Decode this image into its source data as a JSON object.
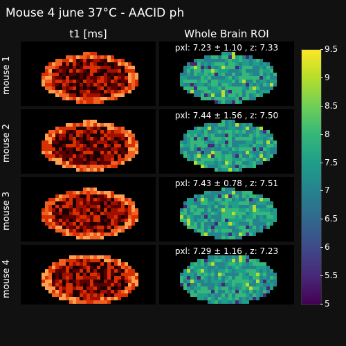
{
  "title": "Mouse 4 june 37°C - AACID ph",
  "columns": {
    "left": "t1 [ms]",
    "right": "Whole Brain ROI"
  },
  "rows": [
    {
      "label": "mouse 1",
      "stat": "pxl: 7.23 ± 1.10 , z: 7.33"
    },
    {
      "label": "mouse 2",
      "stat": "pxl: 7.44 ± 1.56 , z: 7.50"
    },
    {
      "label": "mouse 3",
      "stat": "pxl: 7.43 ± 0.78 , z: 7.51"
    },
    {
      "label": "mouse 4",
      "stat": "pxl: 7.29 ± 1.16 , z: 7.23"
    }
  ],
  "colorbar": {
    "ticks": [
      "9.5",
      "9",
      "8.5",
      "8",
      "7.5",
      "7",
      "6.5",
      "6",
      "5.5",
      "5"
    ],
    "min": 5,
    "max": 9.5,
    "colors": [
      "#440154",
      "#482878",
      "#3e4a89",
      "#31688e",
      "#26828e",
      "#1f9e89",
      "#35b779",
      "#6ece58",
      "#b5de2b",
      "#fde725"
    ]
  },
  "t1_colors": [
    "#1a0000",
    "#5a0000",
    "#a01000",
    "#d83000",
    "#f06020",
    "#ffa050"
  ]
}
